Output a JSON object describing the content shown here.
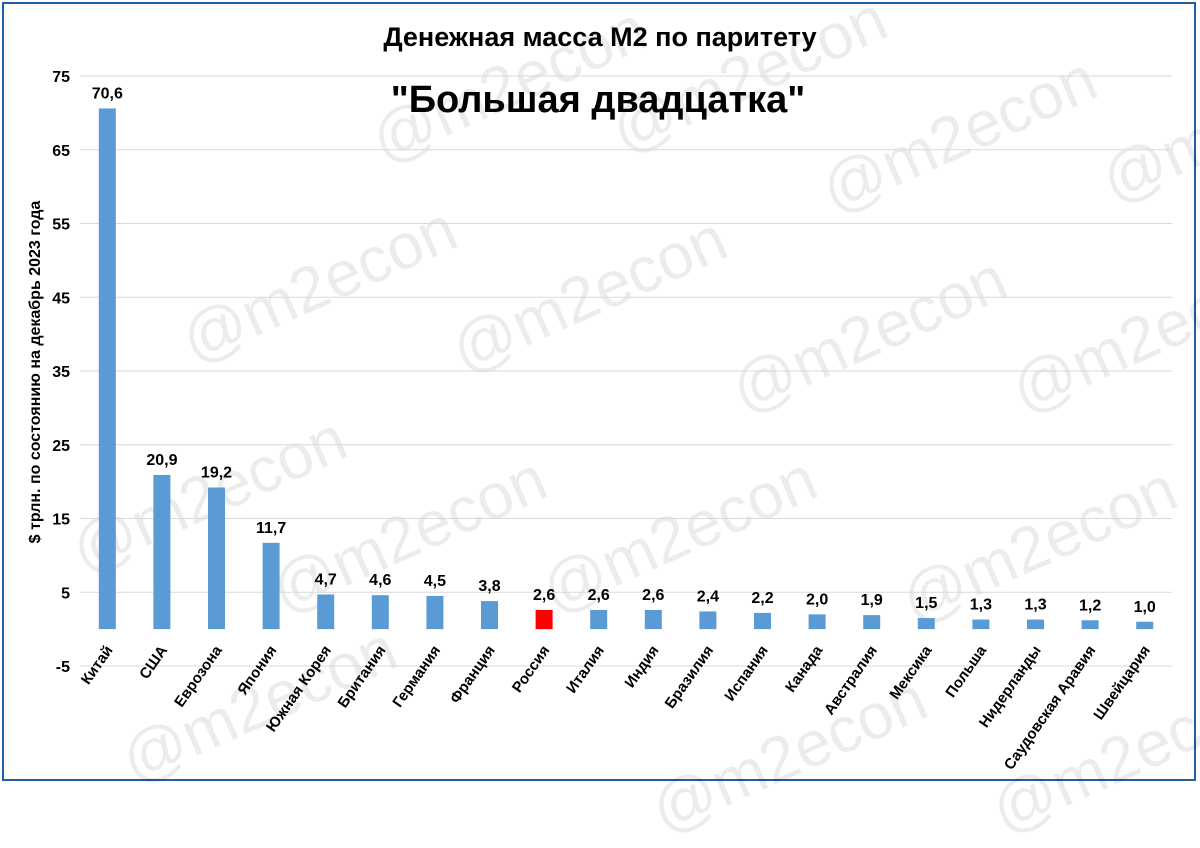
{
  "watermark": "@m2econ",
  "colors": {
    "bar": "#5b9bd5",
    "highlight": "#ff0000",
    "grid": "#d9d9d9",
    "text": "#000000",
    "border": "#1f5fa8"
  },
  "chart_data": {
    "type": "bar",
    "title": "Денежная масса М2 по паритету",
    "subtitle": "\"Большая двадцатка\"",
    "ylabel": "$ трлн. по состоянию на декабрь 2023 года",
    "xlabel": "",
    "ylim": [
      -5,
      75
    ],
    "yticks": [
      -5,
      5,
      15,
      25,
      35,
      45,
      55,
      65,
      75
    ],
    "grid": true,
    "highlight_category": "Россия",
    "categories": [
      "Китай",
      "США",
      "Еврозона",
      "Япония",
      "Южная Корея",
      "Британия",
      "Германия",
      "Франция",
      "Россия",
      "Италия",
      "Индия",
      "Бразилия",
      "Испания",
      "Канада",
      "Австралия",
      "Мексика",
      "Польша",
      "Нидерланды",
      "Саудовская Аравия",
      "Швейцария"
    ],
    "values": [
      70.6,
      20.9,
      19.2,
      11.7,
      4.7,
      4.6,
      4.5,
      3.8,
      2.6,
      2.6,
      2.6,
      2.4,
      2.2,
      2.0,
      1.9,
      1.5,
      1.3,
      1.3,
      1.2,
      1.0
    ],
    "value_labels": [
      "70,6",
      "20,9",
      "19,2",
      "11,7",
      "4,7",
      "4,6",
      "4,5",
      "3,8",
      "2,6",
      "2,6",
      "2,6",
      "2,4",
      "2,2",
      "2,0",
      "1,9",
      "1,5",
      "1,3",
      "1,3",
      "1,2",
      "1,0"
    ]
  }
}
